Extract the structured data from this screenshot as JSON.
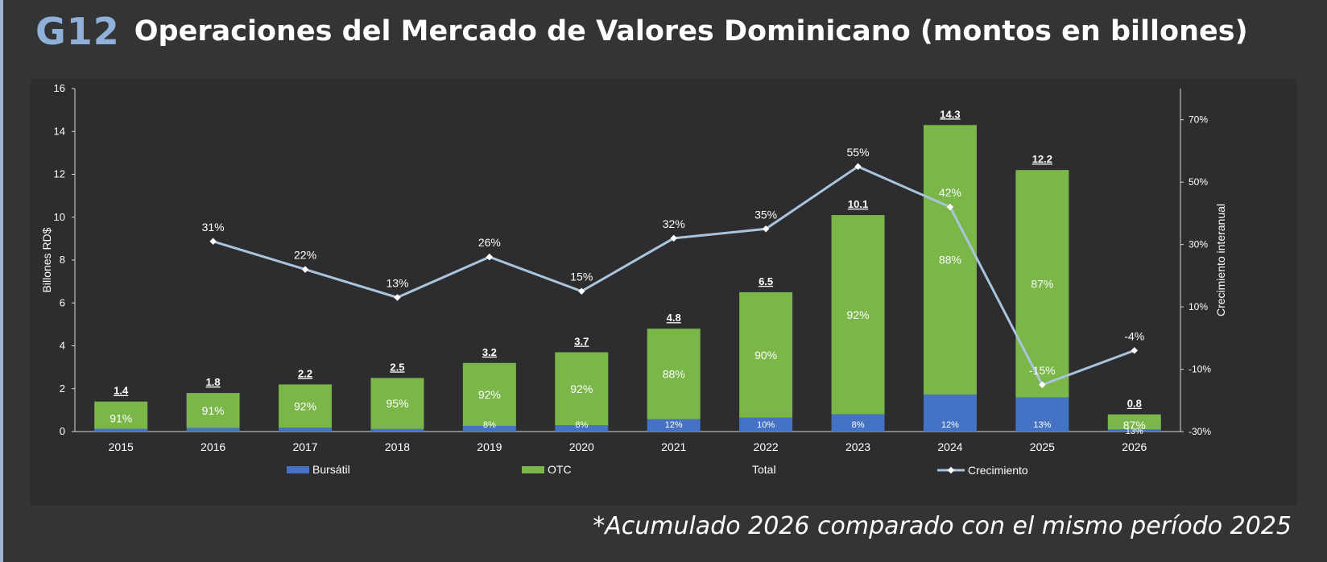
{
  "header": {
    "code": "G12",
    "title": "Operaciones del Mercado de Valores Dominicano (montos en billones)"
  },
  "footnote": "*Acumulado 2026 comparado con el mismo período 2025",
  "chart_data": {
    "type": "bar",
    "stacked": true,
    "categories": [
      "2015",
      "2016",
      "2017",
      "2018",
      "2019",
      "2020",
      "2021",
      "2022",
      "2023",
      "2024",
      "2025",
      "2026"
    ],
    "series": [
      {
        "name": "Bursátil",
        "color": "#4472c4",
        "values": [
          0.13,
          0.16,
          0.18,
          0.12,
          0.26,
          0.3,
          0.58,
          0.65,
          0.81,
          1.72,
          1.59,
          0.1
        ],
        "labels": [
          "",
          "",
          "",
          "",
          "8%",
          "8%",
          "12%",
          "10%",
          "8%",
          "12%",
          "13%",
          "13%"
        ]
      },
      {
        "name": "OTC",
        "color": "#7ab648",
        "values": [
          1.27,
          1.64,
          2.02,
          2.38,
          2.94,
          3.4,
          4.22,
          5.85,
          9.29,
          12.58,
          10.61,
          0.7
        ],
        "labels": [
          "91%",
          "91%",
          "92%",
          "95%",
          "92%",
          "92%",
          "88%",
          "90%",
          "92%",
          "88%",
          "87%",
          "87%"
        ]
      },
      {
        "name": "Total",
        "values": [
          1.4,
          1.8,
          2.2,
          2.5,
          3.2,
          3.7,
          4.8,
          6.5,
          10.1,
          14.3,
          12.2,
          0.8
        ],
        "labels": [
          "1.4",
          "1.8",
          "2.2",
          "2.5",
          "3.2",
          "3.7",
          "4.8",
          "6.5",
          "10.1",
          "14.3",
          "12.2",
          "0.8"
        ]
      },
      {
        "name": "Crecimiento",
        "type": "line",
        "axis": "right",
        "color": "#a9c4dc",
        "values": [
          null,
          31,
          22,
          13,
          26,
          15,
          32,
          35,
          55,
          42,
          -15,
          -4
        ],
        "labels": [
          "",
          "31%",
          "22%",
          "13%",
          "26%",
          "15%",
          "32%",
          "35%",
          "55%",
          "42%",
          "-15%",
          "-4%"
        ]
      }
    ],
    "ylabel": "Billones RD$",
    "ylim": [
      0,
      16
    ],
    "yticks": [
      "0",
      "2",
      "4",
      "6",
      "8",
      "10",
      "12",
      "14",
      "16"
    ],
    "y2label": "Crecimiento interanual",
    "y2lim": [
      -30,
      80
    ],
    "y2ticks": [
      "-30%",
      "-10%",
      "10%",
      "30%",
      "50%",
      "70%"
    ],
    "legend": {
      "position": "bottom",
      "entries": [
        "Bursátil",
        "OTC",
        "Total",
        "Crecimiento"
      ]
    },
    "grid": false
  }
}
